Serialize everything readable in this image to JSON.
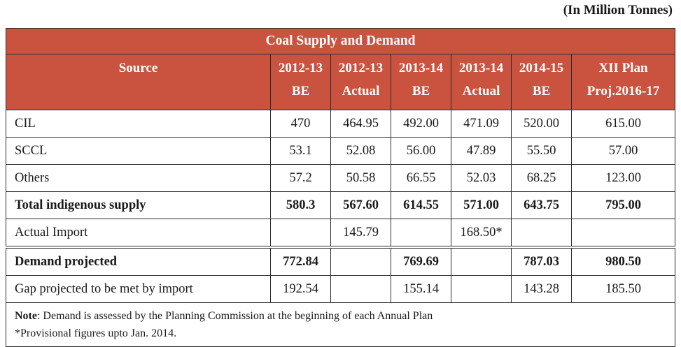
{
  "unit_label": "(In Million Tonnes)",
  "table": {
    "title": "Coal Supply and Demand",
    "headers": [
      {
        "line1": "Source",
        "line2": ""
      },
      {
        "line1": "2012-13",
        "line2": "BE"
      },
      {
        "line1": "2012-13",
        "line2": "Actual"
      },
      {
        "line1": "2013-14",
        "line2": "BE"
      },
      {
        "line1": "2013-14",
        "line2": "Actual"
      },
      {
        "line1": "2014-15",
        "line2": "BE"
      },
      {
        "line1": "XII Plan",
        "line2": "Proj.2016-17"
      }
    ],
    "rows": [
      {
        "label": "CIL",
        "cells": [
          "470",
          "464.95",
          "492.00",
          "471.09",
          "520.00",
          "615.00"
        ]
      },
      {
        "label": "SCCL",
        "cells": [
          "53.1",
          "52.08",
          "56.00",
          "47.89",
          "55.50",
          "57.00"
        ]
      },
      {
        "label": "Others",
        "cells": [
          "57.2",
          "50.58",
          "66.55",
          "52.03",
          "68.25",
          "123.00"
        ]
      },
      {
        "label": "Total indigenous supply",
        "cells": [
          "580.3",
          "567.60",
          "614.55",
          "571.00",
          "643.75",
          "795.00"
        ]
      },
      {
        "label": "Actual Import",
        "cells": [
          "",
          "145.79",
          "",
          "168.50*",
          "",
          ""
        ]
      },
      {
        "label": "Demand projected",
        "cells": [
          "772.84",
          "",
          "769.69",
          "",
          "787.03",
          "980.50"
        ]
      },
      {
        "label": "Gap projected to be met  by import",
        "cells": [
          "192.54",
          "",
          "155.14",
          "",
          "143.28",
          "185.50"
        ]
      }
    ],
    "note_label": "Note",
    "note_text": ": Demand is assessed by the Planning Commission at the beginning of each Annual Plan",
    "provisional_text": "*Provisional figures upto Jan. 2014."
  }
}
